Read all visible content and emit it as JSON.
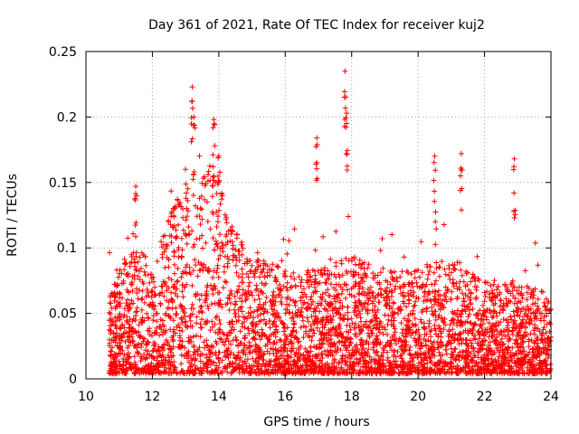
{
  "chart_data": {
    "type": "scatter",
    "title": "Day 361 of 2021, Rate Of TEC Index for receiver kuj2",
    "xlabel": "GPS time / hours",
    "ylabel": "ROTI / TECUs",
    "xlim": [
      10,
      24
    ],
    "ylim": [
      0,
      0.25
    ],
    "x_ticks": [
      10,
      12,
      14,
      16,
      18,
      20,
      22,
      24
    ],
    "x_tick_labels": [
      "10",
      "12",
      "14",
      "16",
      "18",
      "20",
      "22",
      "24"
    ],
    "y_ticks": [
      0,
      0.05,
      0.1,
      0.15,
      0.2,
      0.25
    ],
    "y_tick_labels": [
      "0",
      "0.05",
      "0.1",
      "0.15",
      "0.2",
      "0.25"
    ],
    "grid": true,
    "marker": "+",
    "marker_color": "#ff0000",
    "data_start_hour": 10.7,
    "data_end_hour": 24,
    "envelope_upper": [
      [
        10.7,
        0.06
      ],
      [
        11.2,
        0.09
      ],
      [
        11.6,
        0.1
      ],
      [
        12.0,
        0.08
      ],
      [
        12.5,
        0.12
      ],
      [
        13.0,
        0.15
      ],
      [
        13.3,
        0.14
      ],
      [
        13.7,
        0.16
      ],
      [
        14.0,
        0.16
      ],
      [
        14.3,
        0.12
      ],
      [
        15.0,
        0.09
      ],
      [
        16.0,
        0.08
      ],
      [
        17.0,
        0.08
      ],
      [
        18.0,
        0.09
      ],
      [
        19.0,
        0.08
      ],
      [
        20.0,
        0.08
      ],
      [
        21.0,
        0.09
      ],
      [
        22.0,
        0.07
      ],
      [
        23.0,
        0.07
      ],
      [
        24.0,
        0.06
      ]
    ],
    "spikes": [
      {
        "x": 11.5,
        "y": 0.147
      },
      {
        "x": 13.2,
        "y": 0.223
      },
      {
        "x": 13.25,
        "y": 0.2
      },
      {
        "x": 13.85,
        "y": 0.198
      },
      {
        "x": 14.0,
        "y": 0.17
      },
      {
        "x": 16.95,
        "y": 0.184
      },
      {
        "x": 17.8,
        "y": 0.235
      },
      {
        "x": 17.85,
        "y": 0.203
      },
      {
        "x": 20.5,
        "y": 0.17
      },
      {
        "x": 21.3,
        "y": 0.172
      },
      {
        "x": 22.9,
        "y": 0.168
      }
    ]
  }
}
